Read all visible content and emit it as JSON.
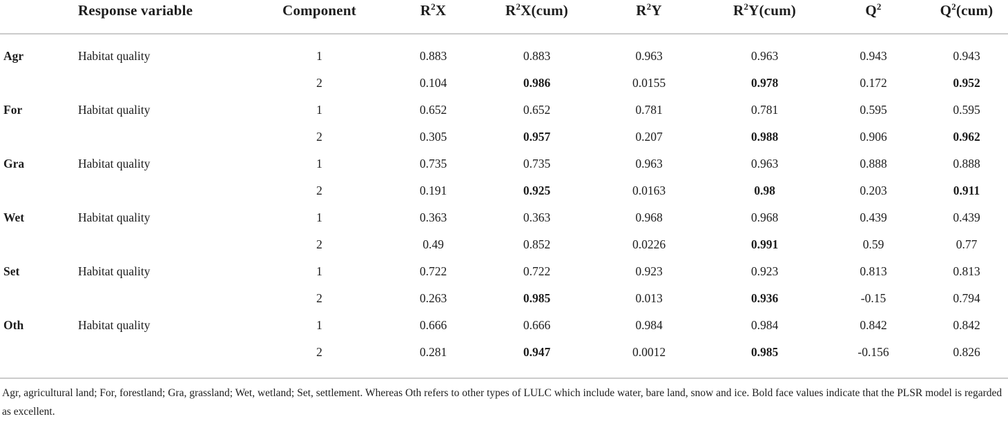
{
  "meta": {
    "background_color": "#ffffff",
    "text_color": "#1d1d1d",
    "rule_color": "#cbcbcb"
  },
  "table": {
    "headers": [
      {
        "pre": ""
      },
      {
        "pre": "Response variable"
      },
      {
        "pre": "Component"
      },
      {
        "pre": "R",
        "sup": "2",
        "post": "X"
      },
      {
        "pre": "R",
        "sup": "2",
        "post": "X(cum)"
      },
      {
        "pre": "R",
        "sup": "2",
        "post": "Y"
      },
      {
        "pre": "R",
        "sup": "2",
        "post": "Y(cum)"
      },
      {
        "pre": "Q",
        "sup": "2",
        "post": ""
      },
      {
        "pre": "Q",
        "sup": "2",
        "post": "(cum)"
      }
    ],
    "rows": [
      {
        "group": "Agr",
        "response": "Habitat quality",
        "component": "1",
        "values": [
          {
            "v": "0.883"
          },
          {
            "v": "0.883"
          },
          {
            "v": "0.963"
          },
          {
            "v": "0.963"
          },
          {
            "v": "0.943"
          },
          {
            "v": "0.943"
          }
        ]
      },
      {
        "group": "",
        "response": "",
        "component": "2",
        "values": [
          {
            "v": "0.104"
          },
          {
            "v": "0.986",
            "bold": true
          },
          {
            "v": "0.0155"
          },
          {
            "v": "0.978",
            "bold": true
          },
          {
            "v": "0.172"
          },
          {
            "v": "0.952",
            "bold": true
          }
        ]
      },
      {
        "group": "For",
        "response": "Habitat quality",
        "component": "1",
        "values": [
          {
            "v": "0.652"
          },
          {
            "v": "0.652"
          },
          {
            "v": "0.781"
          },
          {
            "v": "0.781"
          },
          {
            "v": "0.595"
          },
          {
            "v": "0.595"
          }
        ]
      },
      {
        "group": "",
        "response": "",
        "component": "2",
        "values": [
          {
            "v": "0.305"
          },
          {
            "v": "0.957",
            "bold": true
          },
          {
            "v": "0.207"
          },
          {
            "v": "0.988",
            "bold": true
          },
          {
            "v": "0.906"
          },
          {
            "v": "0.962",
            "bold": true
          }
        ]
      },
      {
        "group": "Gra",
        "response": "Habitat quality",
        "component": "1",
        "values": [
          {
            "v": "0.735"
          },
          {
            "v": "0.735"
          },
          {
            "v": "0.963"
          },
          {
            "v": "0.963"
          },
          {
            "v": "0.888"
          },
          {
            "v": "0.888"
          }
        ]
      },
      {
        "group": "",
        "response": "",
        "component": "2",
        "values": [
          {
            "v": "0.191"
          },
          {
            "v": "0.925",
            "bold": true
          },
          {
            "v": "0.0163"
          },
          {
            "v": "0.98",
            "bold": true
          },
          {
            "v": "0.203"
          },
          {
            "v": "0.911",
            "bold": true
          }
        ]
      },
      {
        "group": "Wet",
        "response": "Habitat quality",
        "component": "1",
        "values": [
          {
            "v": "0.363"
          },
          {
            "v": "0.363"
          },
          {
            "v": "0.968"
          },
          {
            "v": "0.968"
          },
          {
            "v": "0.439"
          },
          {
            "v": "0.439"
          }
        ]
      },
      {
        "group": "",
        "response": "",
        "component": "2",
        "values": [
          {
            "v": "0.49"
          },
          {
            "v": "0.852"
          },
          {
            "v": "0.0226"
          },
          {
            "v": "0.991",
            "bold": true
          },
          {
            "v": "0.59"
          },
          {
            "v": "0.77"
          }
        ]
      },
      {
        "group": "Set",
        "response": "Habitat quality",
        "component": "1",
        "values": [
          {
            "v": "0.722"
          },
          {
            "v": "0.722"
          },
          {
            "v": "0.923"
          },
          {
            "v": "0.923"
          },
          {
            "v": "0.813"
          },
          {
            "v": "0.813"
          }
        ]
      },
      {
        "group": "",
        "response": "",
        "component": "2",
        "values": [
          {
            "v": "0.263"
          },
          {
            "v": "0.985",
            "bold": true
          },
          {
            "v": "0.013"
          },
          {
            "v": "0.936",
            "bold": true
          },
          {
            "v": "-0.15"
          },
          {
            "v": "0.794"
          }
        ]
      },
      {
        "group": "Oth",
        "response": "Habitat quality",
        "component": "1",
        "values": [
          {
            "v": "0.666"
          },
          {
            "v": "0.666"
          },
          {
            "v": "0.984"
          },
          {
            "v": "0.984"
          },
          {
            "v": "0.842"
          },
          {
            "v": "0.842"
          }
        ]
      },
      {
        "group": "",
        "response": "",
        "component": "2",
        "values": [
          {
            "v": "0.281"
          },
          {
            "v": "0.947",
            "bold": true
          },
          {
            "v": "0.0012"
          },
          {
            "v": "0.985",
            "bold": true
          },
          {
            "v": "-0.156"
          },
          {
            "v": "0.826"
          }
        ]
      }
    ]
  },
  "footnote": "Agr, agricultural land; For, forestland; Gra, grassland; Wet, wetland; Set, settlement. Whereas Oth refers to other types of LULC which include water, bare land, snow and ice. Bold face values indicate that the PLSR model is regarded as excellent."
}
